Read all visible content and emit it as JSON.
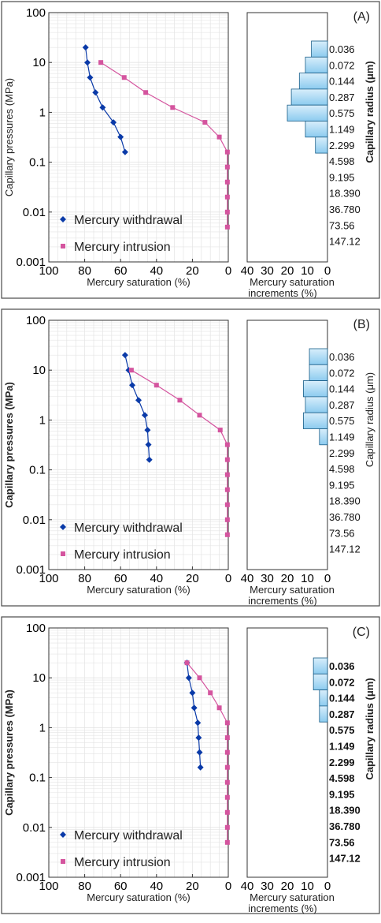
{
  "colors": {
    "withdrawal": "#0a3aa8",
    "intrusion": "#d4549e",
    "histogram_fill_top": "#d8eefb",
    "histogram_fill_bottom": "#8ccbef",
    "histogram_stroke": "#1a5e88",
    "grid": "#e4e4e4",
    "frame": "#4a4a4a"
  },
  "icons": {
    "withdrawal_marker": "diamond-marker",
    "intrusion_marker": "square-marker"
  },
  "chart_data": [
    {
      "type": "line",
      "panel": "(A)",
      "xlabel": "Mercury saturation (%)",
      "ylabel": "Capillary pressures (MPa)",
      "x_axis": {
        "reversed": true,
        "xlim": [
          100,
          0
        ],
        "ticks": [
          "100",
          "80",
          "60",
          "40",
          "20",
          "0"
        ]
      },
      "y_axis": {
        "scale": "log",
        "ylim": [
          0.001,
          100
        ],
        "ticks": [
          "0.001",
          "0.01",
          "0.1",
          "1",
          "10",
          "100"
        ]
      },
      "grid": true,
      "legend_position": "bottom-left",
      "series": [
        {
          "name": "Mercury withdrawal",
          "marker": "diamond",
          "points": [
            [
              79.5,
              20
            ],
            [
              78.5,
              10
            ],
            [
              77,
              5
            ],
            [
              74,
              2.5
            ],
            [
              70,
              1.25
            ],
            [
              64,
              0.63
            ],
            [
              60,
              0.32
            ],
            [
              57.5,
              0.16
            ]
          ]
        },
        {
          "name": "Mercury intrusion",
          "marker": "square",
          "points": [
            [
              71,
              10
            ],
            [
              58,
              5
            ],
            [
              46,
              2.5
            ],
            [
              31,
              1.25
            ],
            [
              13,
              0.63
            ],
            [
              5,
              0.32
            ],
            [
              0.5,
              0.16
            ],
            [
              0.5,
              0.08
            ],
            [
              0.5,
              0.04
            ],
            [
              0.5,
              0.02
            ],
            [
              0.5,
              0.01
            ],
            [
              0.5,
              0.005
            ]
          ]
        }
      ],
      "histogram": {
        "xlabel": "Mercury saturation increments (%)",
        "ticks": [
          "40",
          "30",
          "20",
          "10",
          "0"
        ],
        "xlim": [
          40,
          0
        ],
        "radius_label": "Capillary radius (μm)",
        "radius_classes": [
          "0.036",
          "0.072",
          "0.144",
          "0.287",
          "0.575",
          "1.149",
          "2.299",
          "4.598",
          "9.195",
          "18.390",
          "36.780",
          "73.56",
          "147.12"
        ],
        "values": [
          8,
          11,
          14,
          18,
          20,
          11,
          6,
          0,
          0,
          0,
          0,
          0,
          0
        ]
      }
    },
    {
      "type": "line",
      "panel": "(B)",
      "xlabel": "Mercury saturation (%)",
      "ylabel": "Capillary pressures (MPa)",
      "x_axis": {
        "reversed": true,
        "xlim": [
          100,
          0
        ],
        "ticks": [
          "100",
          "80",
          "60",
          "40",
          "20",
          "0"
        ]
      },
      "y_axis": {
        "scale": "log",
        "ylim": [
          0.001,
          100
        ],
        "ticks": [
          "0.001",
          "0.01",
          "0.1",
          "1",
          "10",
          "100"
        ]
      },
      "grid": true,
      "legend_position": "bottom-left",
      "series": [
        {
          "name": "Mercury withdrawal",
          "marker": "diamond",
          "points": [
            [
              57.5,
              20
            ],
            [
              55.5,
              10
            ],
            [
              53.5,
              5
            ],
            [
              50,
              2.5
            ],
            [
              46.5,
              1.25
            ],
            [
              45,
              0.63
            ],
            [
              44.5,
              0.32
            ],
            [
              44,
              0.16
            ]
          ]
        },
        {
          "name": "Mercury intrusion",
          "marker": "square",
          "points": [
            [
              54,
              10
            ],
            [
              40,
              5
            ],
            [
              27,
              2.5
            ],
            [
              16,
              1.25
            ],
            [
              4.5,
              0.63
            ],
            [
              0.5,
              0.32
            ],
            [
              0.5,
              0.16
            ],
            [
              0.5,
              0.08
            ],
            [
              0.5,
              0.04
            ],
            [
              0.5,
              0.02
            ],
            [
              0.5,
              0.01
            ],
            [
              0.5,
              0.005
            ]
          ]
        }
      ],
      "histogram": {
        "xlabel": "Mercury saturation increments (%)",
        "ticks": [
          "40",
          "30",
          "20",
          "10",
          "0"
        ],
        "xlim": [
          40,
          0
        ],
        "radius_label": "Capillary radius (μm)",
        "radius_classes": [
          "0.036",
          "0.072",
          "0.144",
          "0.287",
          "0.575",
          "1.149",
          "2.299",
          "4.598",
          "9.195",
          "18.390",
          "36.780",
          "73.56",
          "147.12"
        ],
        "values": [
          9,
          9,
          12,
          11,
          12,
          4,
          0,
          0,
          0,
          0,
          0,
          0,
          0
        ]
      }
    },
    {
      "type": "line",
      "panel": "(C)",
      "xlabel": "Mercury saturation (%)",
      "ylabel": "Capillary pressures (MPa)",
      "x_axis": {
        "reversed": true,
        "xlim": [
          100,
          0
        ],
        "ticks": [
          "100",
          "80",
          "60",
          "40",
          "20",
          "0"
        ]
      },
      "y_axis": {
        "scale": "log",
        "ylim": [
          0.001,
          100
        ],
        "ticks": [
          "0.001",
          "0.01",
          "0.1",
          "1",
          "10",
          "100"
        ]
      },
      "grid": true,
      "legend_position": "bottom-left",
      "series": [
        {
          "name": "Mercury withdrawal",
          "marker": "diamond",
          "points": [
            [
              23,
              20
            ],
            [
              22,
              10
            ],
            [
              20,
              5
            ],
            [
              19,
              2.5
            ],
            [
              17,
              1.25
            ],
            [
              16.5,
              0.63
            ],
            [
              16,
              0.32
            ],
            [
              15.5,
              0.16
            ]
          ]
        },
        {
          "name": "Mercury intrusion",
          "marker": "square",
          "points": [
            [
              23,
              20
            ],
            [
              16,
              10
            ],
            [
              10,
              5
            ],
            [
              5,
              2.5
            ],
            [
              0.5,
              1.25
            ],
            [
              0.5,
              0.63
            ],
            [
              0.5,
              0.32
            ],
            [
              0.5,
              0.16
            ],
            [
              0.5,
              0.08
            ],
            [
              0.5,
              0.04
            ],
            [
              0.5,
              0.02
            ],
            [
              0.5,
              0.01
            ],
            [
              0.5,
              0.005
            ]
          ]
        }
      ],
      "histogram": {
        "xlabel": "Mercury saturation increments (%)",
        "ticks": [
          "40",
          "30",
          "20",
          "10",
          "0"
        ],
        "xlim": [
          40,
          0
        ],
        "radius_label": "Capillary radius (μm)",
        "radius_classes": [
          "0.036",
          "0.072",
          "0.144",
          "0.287",
          "0.575",
          "1.149",
          "2.299",
          "4.598",
          "9.195",
          "18.390",
          "36.780",
          "73.56",
          "147.12"
        ],
        "values": [
          7,
          7,
          4,
          4,
          0,
          0,
          0,
          0,
          0,
          0,
          0,
          0,
          0
        ]
      }
    }
  ]
}
